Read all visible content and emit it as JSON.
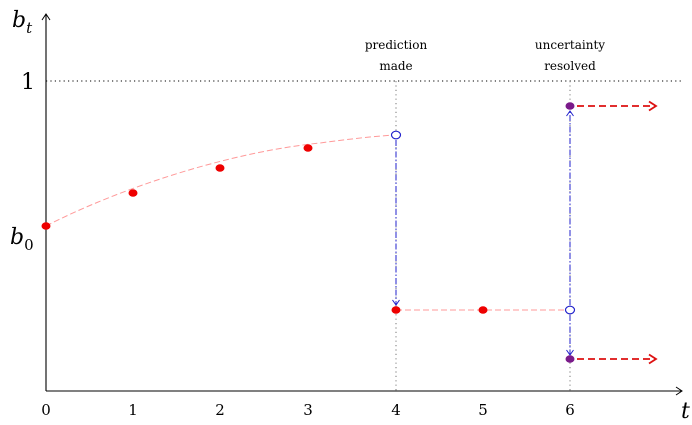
{
  "axes": {
    "y_label": "b",
    "y_label_sub": "t",
    "x_label": "t",
    "y_one_label": "1",
    "y_b0_label": "b",
    "y_b0_sub": "0",
    "x_ticks": [
      "0",
      "1",
      "2",
      "3",
      "4",
      "5",
      "6"
    ]
  },
  "annotations": {
    "prediction": [
      "prediction",
      "made"
    ],
    "uncertainty": [
      "uncertainty",
      "resolved"
    ]
  },
  "series": {
    "belief_curve": [
      {
        "t": 0,
        "b": 0.456
      },
      {
        "t": 1,
        "b": 0.596
      },
      {
        "t": 2,
        "b": 0.667
      },
      {
        "t": 3,
        "b": 0.723
      }
    ],
    "curve_end_open": {
      "t": 4,
      "b": 0.755
    },
    "after_prediction": [
      {
        "t": 4,
        "b": 0.231
      },
      {
        "t": 5,
        "b": 0.231
      }
    ],
    "open_at_resolution": {
      "t": 6,
      "b": 0.231
    },
    "resolved_outcomes": [
      {
        "t": 6,
        "b": 0.831
      },
      {
        "t": 6,
        "b": 0.087
      }
    ]
  },
  "colors": {
    "dot": "#ee0000",
    "curve": "#ff9999",
    "arrow_blue": "#2222cc",
    "resolved": "#7a1a8a",
    "dashed_red": "#dd1111"
  }
}
